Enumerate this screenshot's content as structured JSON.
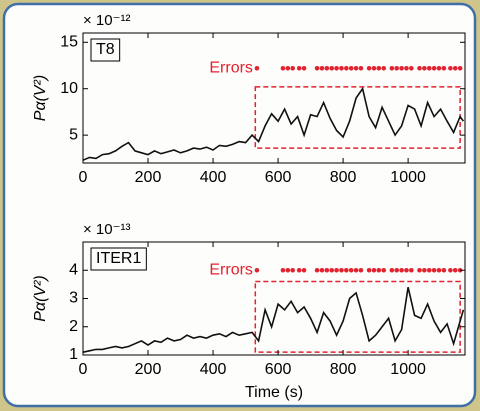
{
  "chart_data": [
    {
      "type": "line",
      "label": "T8",
      "offset_label": "× 10⁻¹²",
      "ylabel": "Pα(V²)",
      "xlim": [
        0,
        1175
      ],
      "ylim": [
        2,
        16
      ],
      "xticks": [
        0,
        200,
        400,
        600,
        800,
        1000
      ],
      "yticks": [
        5,
        10,
        15
      ],
      "color": "#111111",
      "x": [
        0,
        20,
        40,
        60,
        80,
        100,
        120,
        140,
        160,
        180,
        200,
        220,
        240,
        260,
        280,
        300,
        320,
        340,
        360,
        380,
        400,
        420,
        440,
        460,
        480,
        500,
        520,
        540,
        560,
        580,
        600,
        620,
        640,
        660,
        680,
        700,
        720,
        740,
        760,
        780,
        800,
        820,
        840,
        860,
        880,
        900,
        920,
        940,
        960,
        980,
        1000,
        1020,
        1040,
        1060,
        1080,
        1100,
        1120,
        1140,
        1160,
        1170
      ],
      "values": [
        2.3,
        2.6,
        2.5,
        2.9,
        3.0,
        3.3,
        3.8,
        4.2,
        3.3,
        3.1,
        2.9,
        3.3,
        3.0,
        3.2,
        3.4,
        3.1,
        3.3,
        3.6,
        3.5,
        3.7,
        3.4,
        3.9,
        3.8,
        4.0,
        4.3,
        4.2,
        5.0,
        4.3,
        6.0,
        7.3,
        6.5,
        7.8,
        6.2,
        7.0,
        5.0,
        7.2,
        7.0,
        8.5,
        6.8,
        5.5,
        4.8,
        6.5,
        9.0,
        10.0,
        7.0,
        5.8,
        8.0,
        6.5,
        5.0,
        6.0,
        8.2,
        7.8,
        6.0,
        8.5,
        7.0,
        7.8,
        6.5,
        5.3,
        7.0,
        6.5
      ],
      "markers_label": "Errors",
      "markers": {
        "color": "#e3222f",
        "x": [
          535,
          615,
          630,
          645,
          665,
          680,
          720,
          735,
          750,
          765,
          780,
          795,
          810,
          825,
          840,
          855,
          880,
          895,
          910,
          925,
          950,
          965,
          980,
          995,
          1010,
          1035,
          1050,
          1065,
          1080,
          1095,
          1110,
          1130,
          1145,
          1160
        ],
        "values": [
          12.2,
          12.2,
          12.2,
          12.2,
          12.2,
          12.2,
          12.2,
          12.2,
          12.2,
          12.2,
          12.2,
          12.2,
          12.2,
          12.2,
          12.2,
          12.2,
          12.2,
          12.2,
          12.2,
          12.2,
          12.2,
          12.2,
          12.2,
          12.2,
          12.2,
          12.2,
          12.2,
          12.2,
          12.2,
          12.2,
          12.2,
          12.2,
          12.2,
          12.2
        ]
      },
      "region": {
        "color": "#e3222f",
        "x": [
          530,
          1160
        ],
        "y": [
          3.6,
          10.2
        ]
      }
    },
    {
      "type": "line",
      "label": "ITER1",
      "offset_label": "× 10⁻¹³",
      "ylabel": "Pα(V²)",
      "xlabel": "Time (s)",
      "xlim": [
        0,
        1175
      ],
      "ylim": [
        1,
        5
      ],
      "xticks": [
        0,
        200,
        400,
        600,
        800,
        1000
      ],
      "yticks": [
        1,
        2,
        3,
        4
      ],
      "color": "#111111",
      "x": [
        0,
        20,
        40,
        60,
        80,
        100,
        120,
        140,
        160,
        180,
        200,
        220,
        240,
        260,
        280,
        300,
        320,
        340,
        360,
        380,
        400,
        420,
        440,
        460,
        480,
        500,
        520,
        540,
        560,
        580,
        600,
        620,
        640,
        660,
        680,
        700,
        720,
        740,
        760,
        780,
        800,
        820,
        840,
        860,
        880,
        900,
        920,
        940,
        960,
        980,
        1000,
        1020,
        1040,
        1060,
        1080,
        1100,
        1120,
        1140,
        1160,
        1170
      ],
      "values": [
        1.1,
        1.15,
        1.2,
        1.2,
        1.25,
        1.3,
        1.25,
        1.3,
        1.4,
        1.5,
        1.35,
        1.5,
        1.45,
        1.6,
        1.5,
        1.55,
        1.7,
        1.6,
        1.65,
        1.6,
        1.7,
        1.75,
        1.65,
        1.8,
        1.7,
        1.75,
        1.8,
        1.5,
        2.6,
        2.0,
        2.8,
        2.6,
        2.9,
        2.5,
        2.7,
        2.3,
        1.8,
        2.5,
        2.2,
        1.7,
        2.2,
        3.0,
        3.2,
        2.4,
        1.5,
        1.7,
        2.0,
        2.3,
        1.5,
        1.9,
        3.4,
        2.4,
        2.3,
        2.8,
        2.2,
        1.8,
        2.1,
        1.4,
        2.2,
        2.6
      ],
      "markers_label": "Errors",
      "markers": {
        "color": "#e3222f",
        "x": [
          535,
          615,
          630,
          645,
          665,
          680,
          720,
          735,
          750,
          765,
          780,
          795,
          810,
          825,
          840,
          855,
          880,
          895,
          910,
          925,
          950,
          965,
          980,
          995,
          1010,
          1035,
          1050,
          1065,
          1080,
          1095,
          1110,
          1130,
          1145,
          1160
        ],
        "values": [
          4,
          4,
          4,
          4,
          4,
          4,
          4,
          4,
          4,
          4,
          4,
          4,
          4,
          4,
          4,
          4,
          4,
          4,
          4,
          4,
          4,
          4,
          4,
          4,
          4,
          4,
          4,
          4,
          4,
          4,
          4,
          4,
          4,
          4
        ]
      },
      "region": {
        "color": "#e3222f",
        "x": [
          530,
          1160
        ],
        "y": [
          1.1,
          3.6
        ]
      }
    }
  ]
}
